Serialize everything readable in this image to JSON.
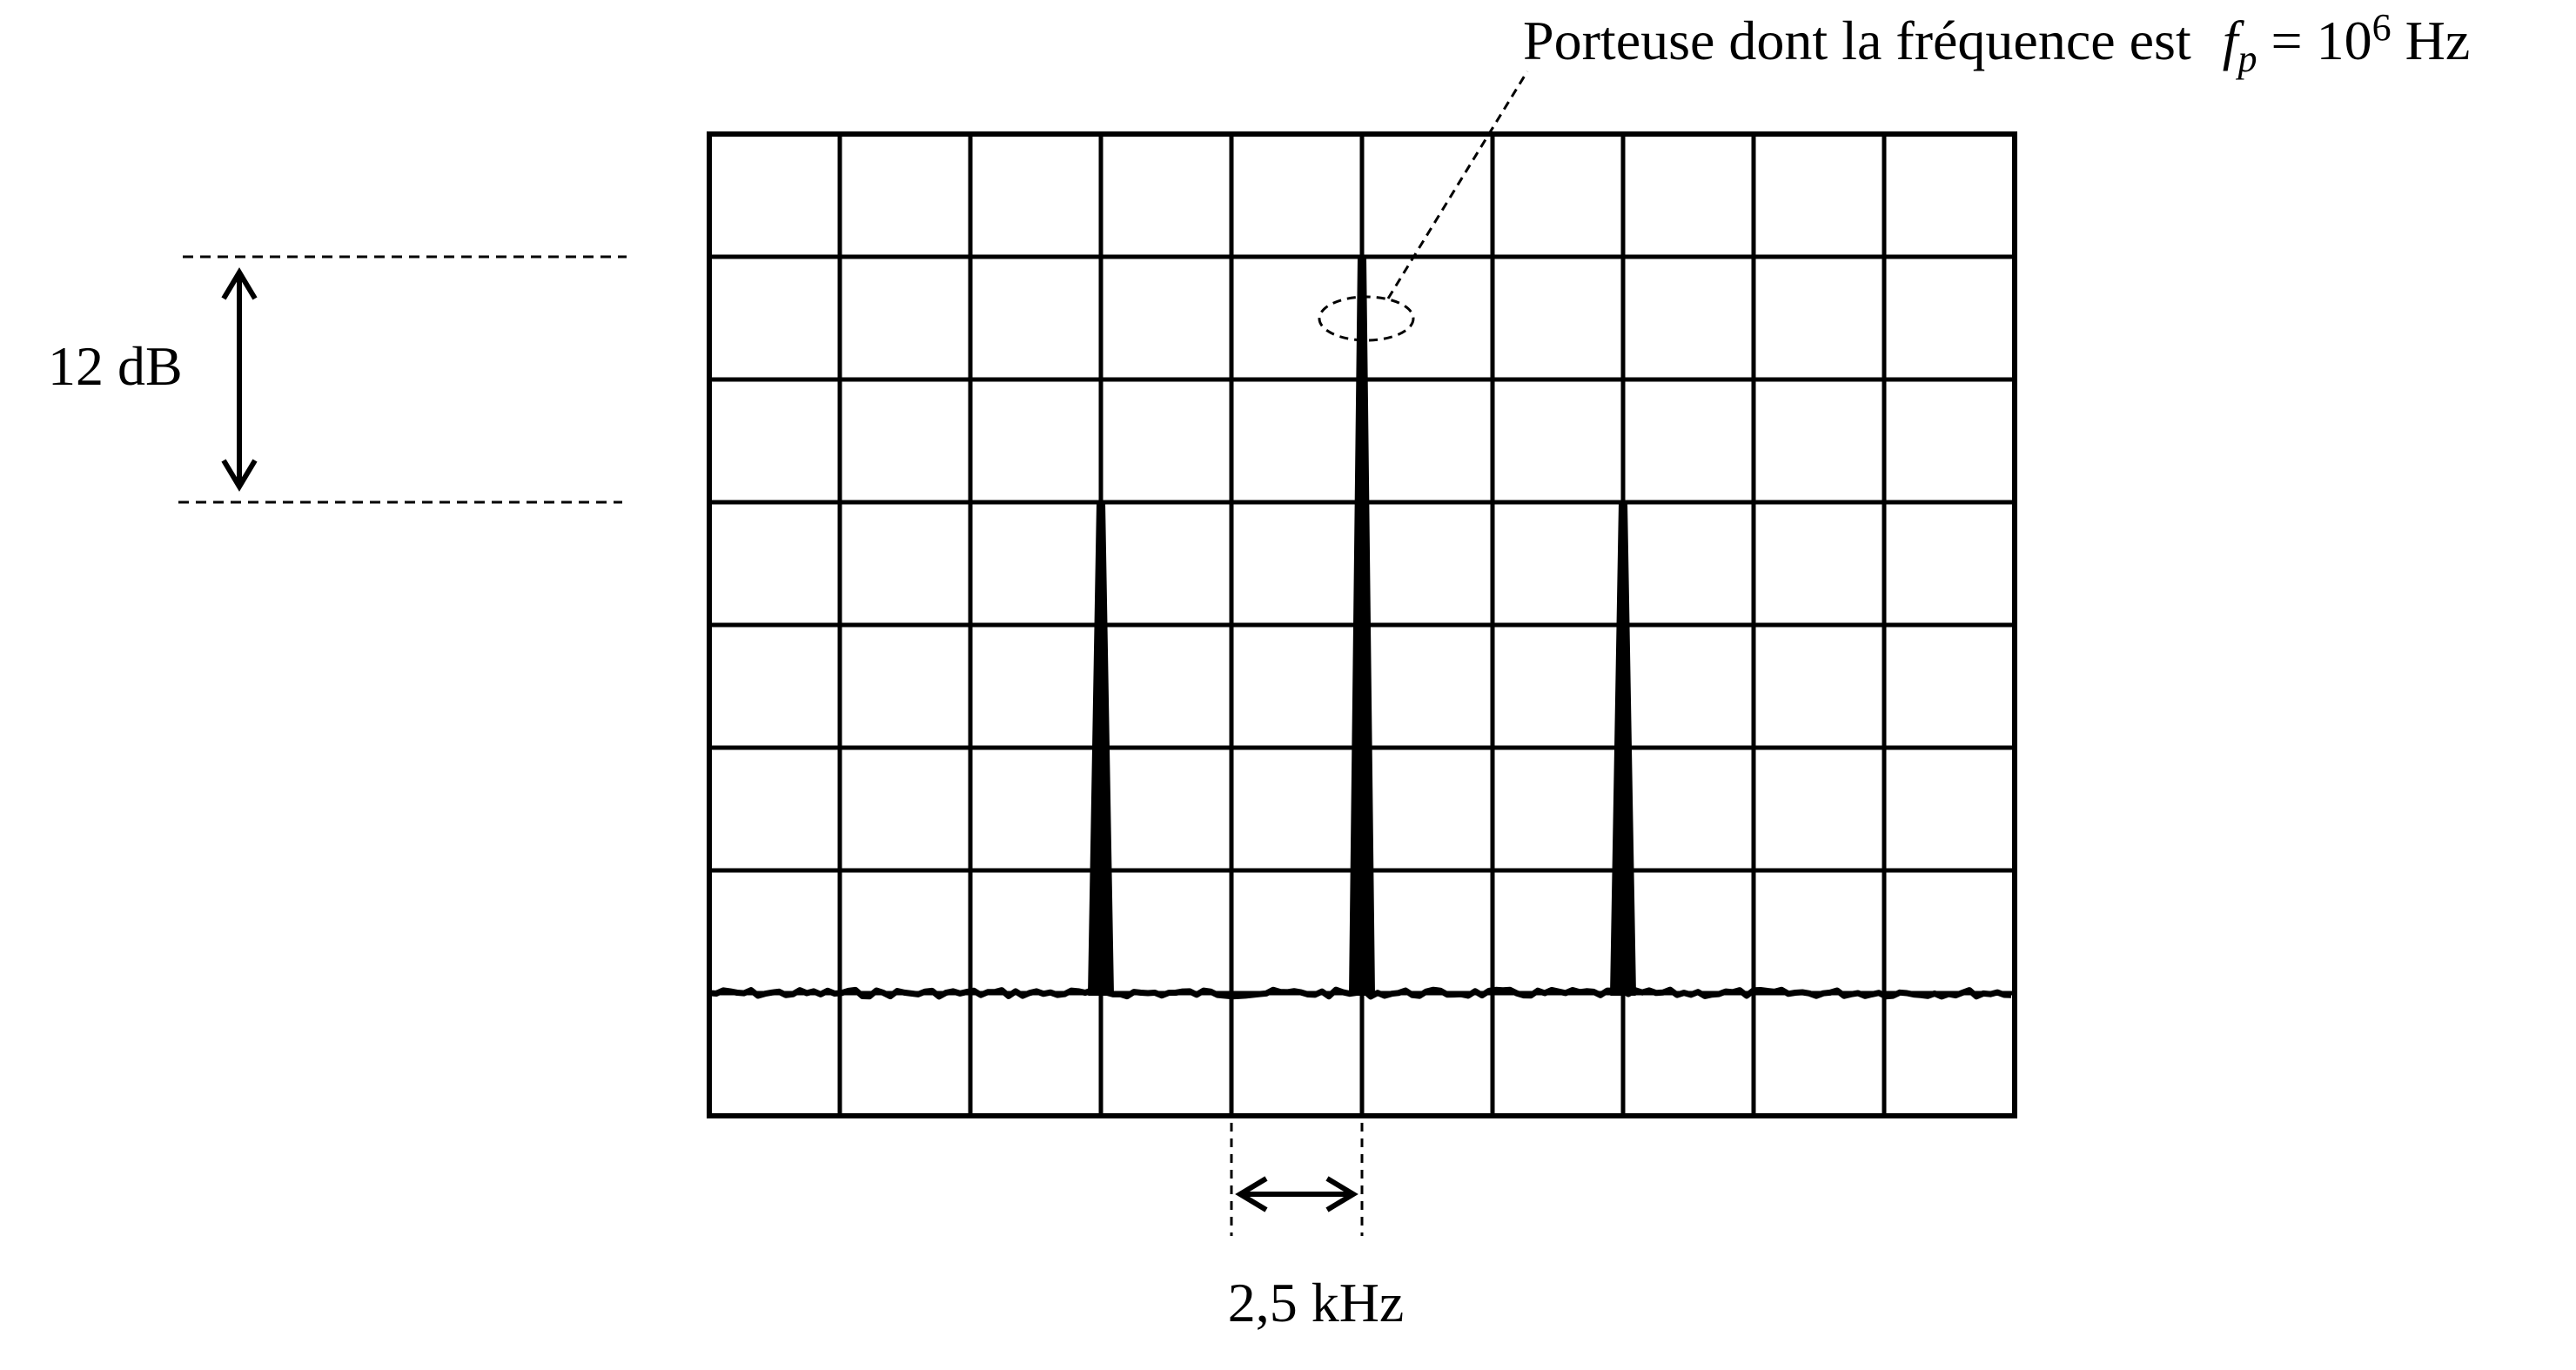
{
  "chart_data": {
    "type": "line",
    "title": "",
    "grid": true,
    "grid_columns": 10,
    "grid_rows": 8,
    "scale": {
      "x_per_division": {
        "value": 2.5,
        "unit": "kHz",
        "label": "2,5 kHz"
      },
      "y_per_2_divisions": {
        "value": 12,
        "unit": "dB",
        "label": "12 dB"
      }
    },
    "noise_floor_division": 7,
    "series": [
      {
        "type": "spectrum-lines",
        "points": [
          {
            "x_div": 3,
            "top_div": 3
          },
          {
            "x_div": 5,
            "top_div": 1
          },
          {
            "x_div": 7,
            "top_div": 3
          }
        ]
      }
    ],
    "annotation": {
      "text_before": "Porteuse dont la fréquence est ",
      "symbol": "f",
      "subscript": "p",
      "text_mid": " = 10",
      "exponent": "6",
      "text_after": " Hz"
    }
  }
}
